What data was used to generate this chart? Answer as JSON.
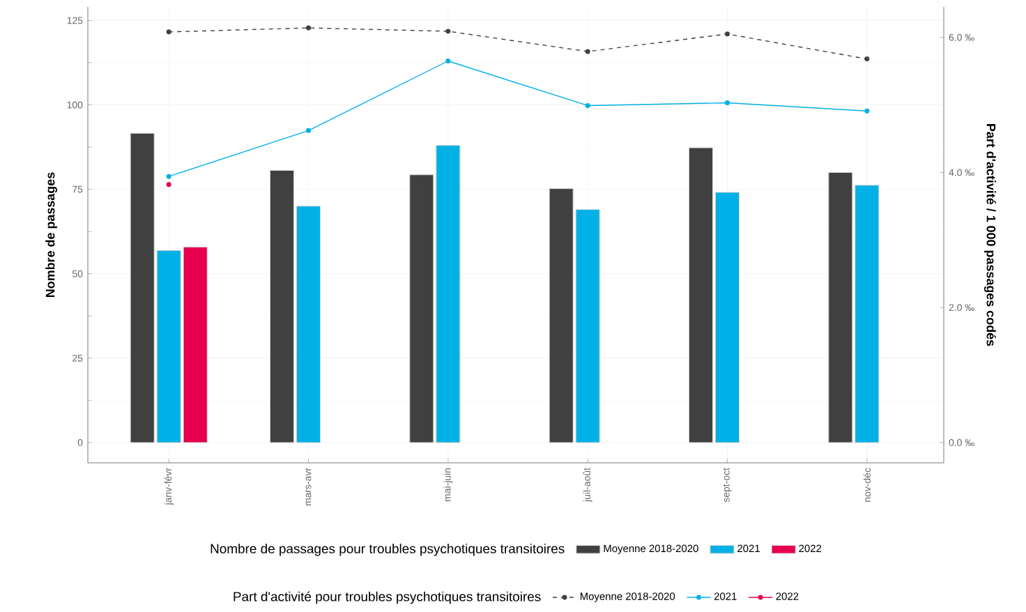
{
  "chart_data": {
    "type": "bar",
    "categories": [
      "janv-févr",
      "mars-avr",
      "mai-juin",
      "juil-août",
      "sept-oct",
      "nov-déc"
    ],
    "ylabel": "Nombre de passages",
    "y2label": "Part d'activité / 1 000 passages codés",
    "legend_title": [
      "Nombre de passages pour troubles psychotiques transitoires",
      "Part d'activité pour troubles psychotiques transitoires"
    ],
    "ylim": [
      -6,
      129
    ],
    "yticks": [
      0,
      25,
      50,
      75,
      100,
      125
    ],
    "y2lim": [
      -0.3,
      6.45
    ],
    "y2ticks": [
      {
        "value": 0,
        "label": "0.0 ‰"
      },
      {
        "value": 2,
        "label": "2.0 ‰"
      },
      {
        "value": 4,
        "label": "4.0 ‰"
      },
      {
        "value": 6,
        "label": "6.0 ‰"
      }
    ],
    "grid": true,
    "legend": "bottom",
    "marker": "circle",
    "series": [
      {
        "name": "Moyenne 2018-2020",
        "color": "#404040",
        "values": [
          91.6,
          80.6,
          79.3,
          75.2,
          87.3,
          80.0
        ]
      },
      {
        "name": "2021",
        "color": "#00b0e6",
        "values": [
          56.9,
          70.0,
          88.0,
          69.0,
          74.1,
          76.2
        ]
      },
      {
        "name": "2022",
        "color": "#e6004d",
        "values": [
          57.9,
          null,
          null,
          null,
          null,
          null
        ]
      },
      {
        "name": "Moyenne 2018-2020",
        "type": "line",
        "axis": "y2",
        "line_style": "dashed",
        "color": "#404040",
        "values": [
          6.08,
          6.14,
          6.09,
          5.79,
          6.05,
          5.68
        ]
      },
      {
        "name": "2021",
        "type": "line",
        "axis": "y2",
        "line_style": "solid",
        "color": "#00b0e6",
        "values": [
          3.94,
          4.62,
          5.65,
          4.99,
          5.03,
          4.91
        ]
      },
      {
        "name": "2022",
        "type": "line",
        "axis": "y2",
        "line_style": "solid",
        "color": "#e6004d",
        "values": [
          3.82,
          null,
          null,
          null,
          null,
          null
        ]
      }
    ]
  }
}
